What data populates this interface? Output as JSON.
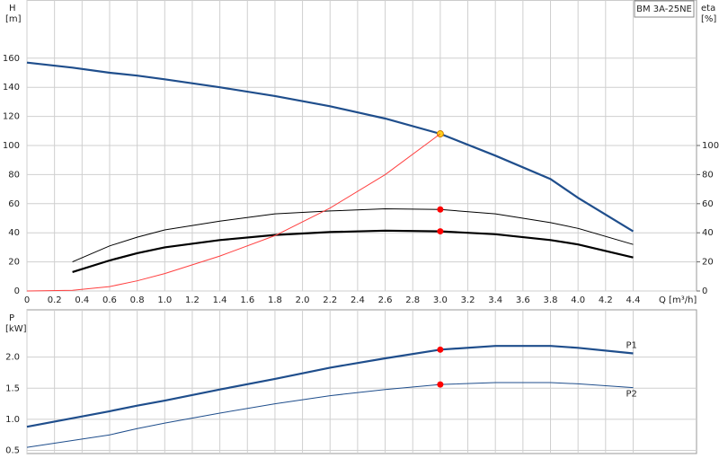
{
  "chart_data": [
    {
      "type": "line",
      "title": "BM 3A-25NE",
      "y_label": "H",
      "y_unit": "[m]",
      "y2_label": "eta",
      "y2_unit": "[%]",
      "x_label": "Q [m³/h]",
      "x": [
        0,
        0.33,
        0.6,
        0.8,
        1.0,
        1.4,
        1.8,
        2.2,
        2.6,
        3.0,
        3.4,
        3.8,
        4.0,
        4.4
      ],
      "xlim": [
        0,
        4.86
      ],
      "xticks": [
        0,
        0.2,
        0.4,
        0.6,
        0.8,
        {
          "value": 1.0,
          "label": "1.0"
        },
        1.2,
        1.4,
        1.6,
        1.8,
        {
          "value": 2.0,
          "label": "2.0"
        },
        2.2,
        2.4,
        2.6,
        2.8,
        {
          "value": 3.0,
          "label": "3.0"
        },
        3.2,
        3.4,
        3.6,
        3.8,
        {
          "value": 4.0,
          "label": "4.0"
        },
        4.2,
        4.4
      ],
      "ylim": [
        0,
        200
      ],
      "yticks": [
        0,
        20,
        40,
        60,
        80,
        100,
        120,
        140,
        160
      ],
      "y2lim": [
        0,
        200
      ],
      "y2ticks": [
        0,
        20,
        40,
        60,
        80,
        100
      ],
      "grid": true,
      "series": [
        {
          "color": "#1f4e8c",
          "width": 2.2,
          "marker_color": "#ffd21f",
          "values": [
            157,
            153.5,
            150,
            148,
            145.5,
            140,
            134,
            127,
            118.5,
            108,
            93,
            77,
            64,
            41
          ]
        },
        {
          "color": "#000000",
          "width": 1,
          "axis": "y2",
          "marker_color": "#ff0000",
          "values": [
            null,
            20,
            31,
            37,
            42,
            48,
            53,
            55,
            56.5,
            56,
            53,
            47,
            43,
            32
          ]
        },
        {
          "color": "#000000",
          "width": 2.2,
          "axis": "y2",
          "marker_color": "#ff0000",
          "values": [
            null,
            13,
            21,
            26,
            30,
            35,
            38.5,
            40.5,
            41.5,
            41,
            39,
            35,
            32,
            23
          ]
        },
        {
          "color": "#ff4040",
          "width": 1,
          "style": "system",
          "values": [
            0,
            0.5,
            3,
            7,
            12,
            24,
            38,
            57,
            80,
            108,
            null,
            null,
            null,
            null
          ]
        }
      ]
    },
    {
      "type": "line",
      "y_label": "P",
      "y_unit": "[kW]",
      "x": [
        0,
        0.6,
        0.8,
        1.0,
        1.4,
        1.8,
        2.2,
        2.6,
        3.0,
        3.4,
        3.8,
        4.0,
        4.4
      ],
      "xlim": [
        0,
        4.86
      ],
      "ylim": [
        0.45,
        2.76
      ],
      "yticks": [
        0.5,
        {
          "value": 1.0,
          "label": "1.0"
        },
        1.5,
        {
          "value": 2.0,
          "label": "2.0"
        }
      ],
      "grid": true,
      "series": [
        {
          "name": "P1",
          "color": "#1f4e8c",
          "width": 2.2,
          "marker_color": "#ff0000",
          "values": [
            0.88,
            1.13,
            1.22,
            1.3,
            1.48,
            1.65,
            1.83,
            1.98,
            2.12,
            2.18,
            2.18,
            2.15,
            2.06
          ]
        },
        {
          "name": "P2",
          "color": "#1f4e8c",
          "width": 1,
          "marker_color": "#ff0000",
          "values": [
            0.55,
            0.75,
            0.85,
            0.94,
            1.1,
            1.25,
            1.38,
            1.48,
            1.56,
            1.59,
            1.59,
            1.57,
            1.51
          ]
        }
      ]
    }
  ]
}
